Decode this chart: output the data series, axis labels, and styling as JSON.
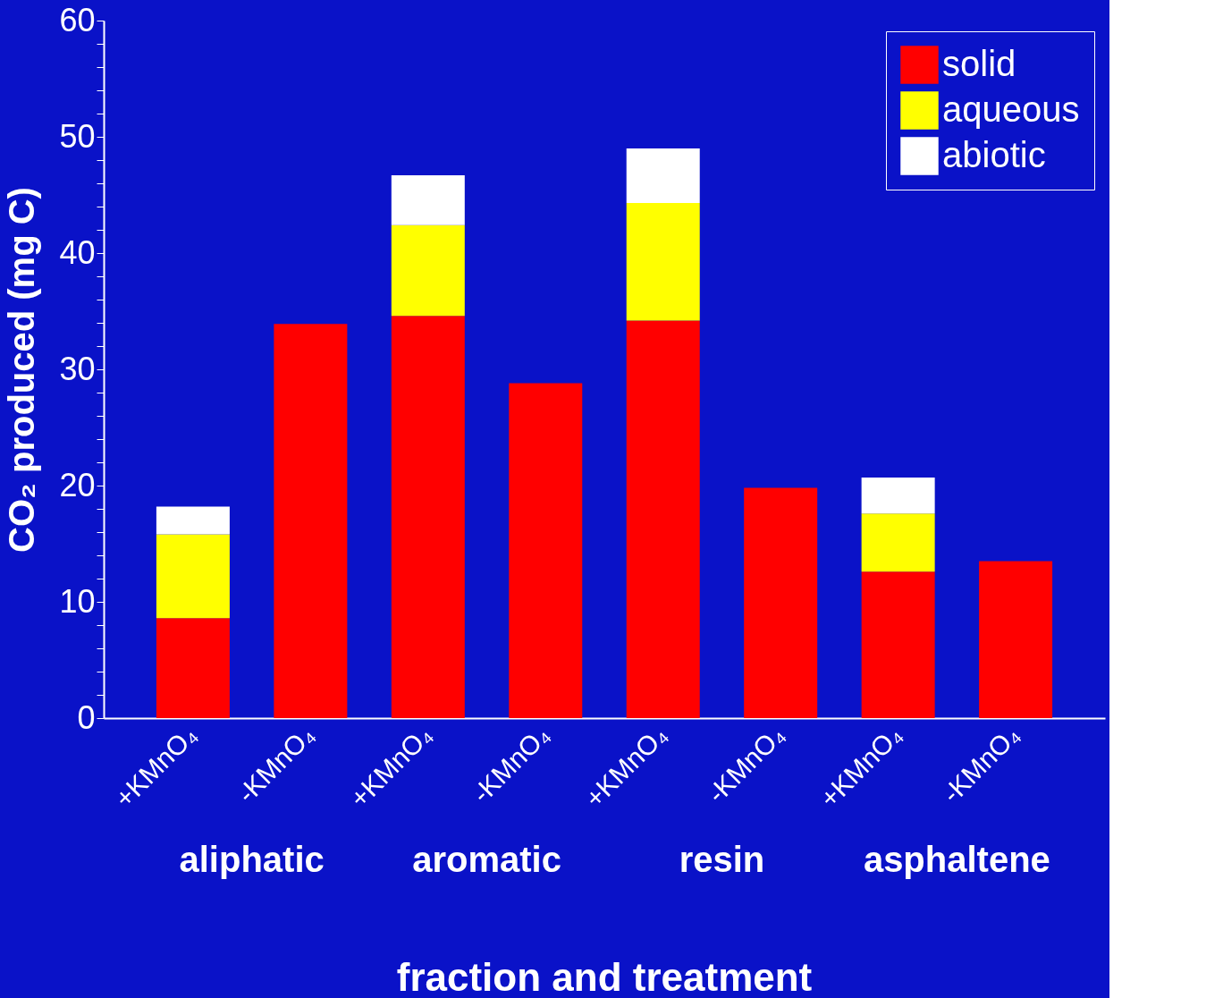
{
  "chart_data": {
    "type": "bar",
    "stacked": true,
    "xlabel": "fraction and treatment",
    "ylabel": "CO₂ produced (mg C)",
    "categories": [
      "+KMnO₄",
      "-KMnO₄",
      "+KMnO₄",
      "-KMnO₄",
      "+KMnO₄",
      "-KMnO₄",
      "+KMnO₄",
      "-KMnO₄"
    ],
    "series": [
      {
        "name": "solid",
        "color": "#ff0000",
        "values": [
          8.6,
          33.9,
          34.6,
          28.8,
          34.2,
          19.8,
          12.6,
          13.5
        ]
      },
      {
        "name": "aqueous",
        "color": "#ffff00",
        "values": [
          7.2,
          null,
          7.8,
          null,
          10.1,
          null,
          5.0,
          null
        ]
      },
      {
        "name": "abiotic",
        "color": "#ffffff",
        "values": [
          2.4,
          null,
          4.3,
          null,
          4.7,
          null,
          3.1,
          null
        ]
      }
    ],
    "ylim": [
      0,
      60
    ],
    "yticks": [
      0,
      {
        "value": 2,
        "label": null
      },
      {
        "value": 4,
        "label": null
      },
      {
        "value": 6,
        "label": null
      },
      {
        "value": 8,
        "label": null
      },
      10,
      {
        "value": 12,
        "label": null
      },
      {
        "value": 14,
        "label": null
      },
      {
        "value": 16,
        "label": null
      },
      {
        "value": 18,
        "label": null
      },
      20,
      {
        "value": 22,
        "label": null
      },
      {
        "value": 24,
        "label": null
      },
      {
        "value": 26,
        "label": null
      },
      {
        "value": 28,
        "label": null
      },
      30,
      {
        "value": 32,
        "label": null
      },
      {
        "value": 34,
        "label": null
      },
      {
        "value": 36,
        "label": null
      },
      {
        "value": 38,
        "label": null
      },
      40,
      {
        "value": 42,
        "label": null
      },
      {
        "value": 44,
        "label": null
      },
      {
        "value": 46,
        "label": null
      },
      {
        "value": 48,
        "label": null
      },
      50,
      {
        "value": 52,
        "label": null
      },
      {
        "value": 54,
        "label": null
      },
      {
        "value": 56,
        "label": null
      },
      {
        "value": 58,
        "label": null
      },
      60
    ],
    "annotations": [
      "aliphatic",
      "aromatic",
      "resin",
      "asphaltene"
    ],
    "grid": false,
    "legend": "top right"
  }
}
